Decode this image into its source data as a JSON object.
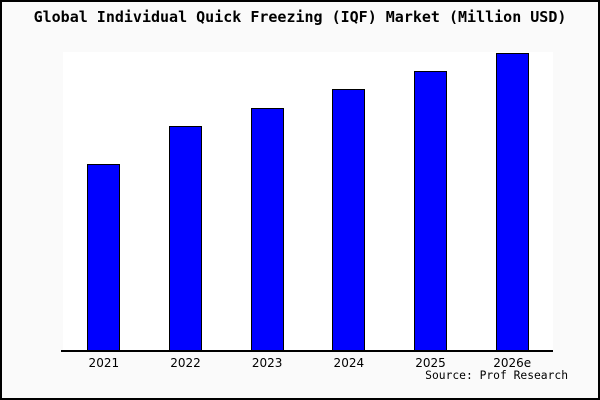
{
  "source_credit": "Source: Prof Research",
  "chart_data": {
    "type": "bar",
    "title": "Global Individual Quick Freezing (IQF) Market (Million USD)",
    "categories": [
      "2021",
      "2022",
      "2023",
      "2024",
      "2025",
      "2026e"
    ],
    "values": [
      62.9,
      75.6,
      81.6,
      88.0,
      94.0,
      100.0
    ],
    "values_unit": "relative height, percent of tallest bar (y-axis unlabeled in chart)",
    "xlabel": "",
    "ylabel": "",
    "ylim": [
      0,
      100
    ],
    "grid": false,
    "legend": "none",
    "bar_color": "#0000ff",
    "bar_border_color": "#000000",
    "plot_background": "#ffffff",
    "page_background": "#fafafa",
    "frame_border_color": "#000000"
  }
}
